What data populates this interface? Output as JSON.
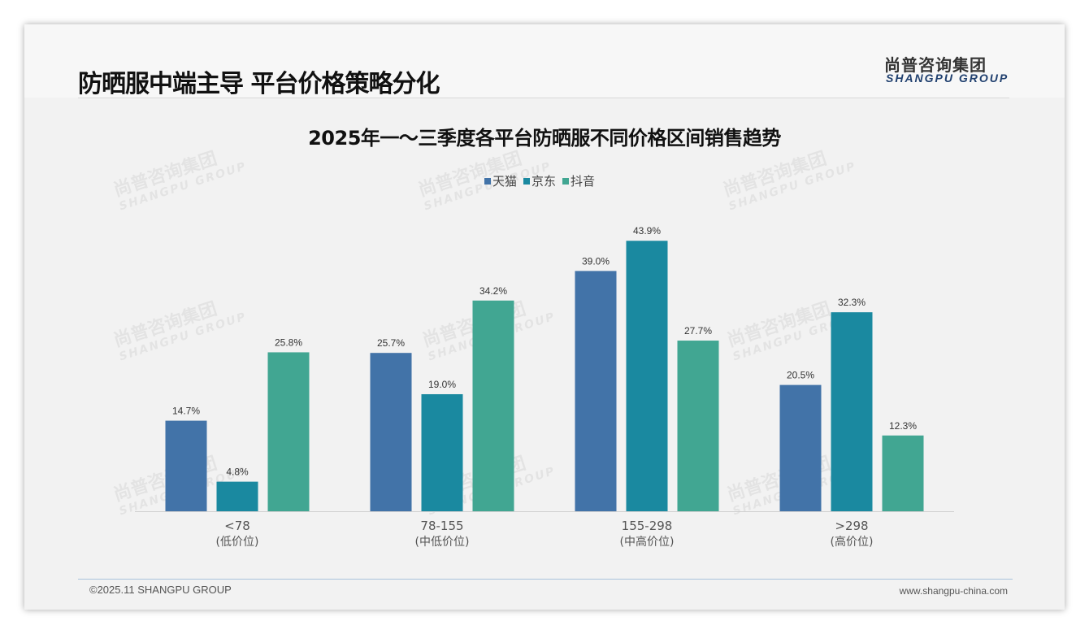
{
  "header": {
    "title": "防晒服中端主导 平台价格策略分化",
    "logo_cn": "尚普咨询集团",
    "logo_en": "SHANGPU GROUP"
  },
  "footer": {
    "copyright": "©2025.11 SHANGPU GROUP",
    "website": "www.shangpu-china.com"
  },
  "chart_data": {
    "type": "bar",
    "title": "2025年一～三季度各平台防晒服不同价格区间销售趋势",
    "categories": [
      "<78",
      "78-155",
      "155-298",
      ">298"
    ],
    "category_sublabels": [
      "(低价位)",
      "(中低价位)",
      "(中高价位)",
      "(高价位)"
    ],
    "series": [
      {
        "name": "天猫",
        "color": "#4273a8",
        "values": [
          14.7,
          25.7,
          39.0,
          20.5
        ]
      },
      {
        "name": "京东",
        "color": "#1a89a0",
        "values": [
          4.8,
          19.0,
          43.9,
          32.3
        ]
      },
      {
        "name": "抖音",
        "color": "#41a692",
        "values": [
          25.8,
          34.2,
          27.7,
          12.3
        ]
      }
    ],
    "unit": "%",
    "ylim": [
      0,
      50
    ],
    "grid": false,
    "legend": "top-center"
  }
}
